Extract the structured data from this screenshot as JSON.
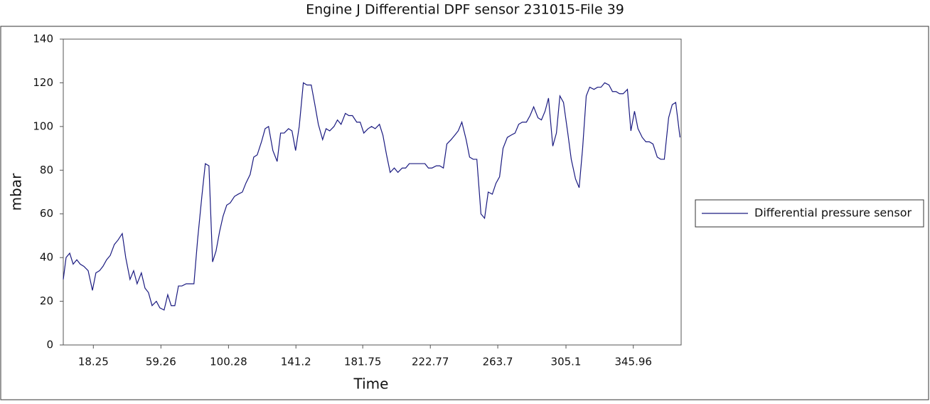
{
  "chart_data": {
    "type": "line",
    "title": "Engine J Differential DPF sensor 231015-File 39",
    "x_label": "Time",
    "y_label": "mbar",
    "xlim": [
      0,
      375
    ],
    "ylim": [
      0,
      140
    ],
    "xticks": [
      18.25,
      59.26,
      100.28,
      141.2,
      181.75,
      222.77,
      263.7,
      305.1,
      345.96
    ],
    "yticks": [
      0,
      20,
      40,
      60,
      80,
      100,
      120,
      140
    ],
    "grid": false,
    "legend": "right",
    "x": [
      0,
      1.7,
      3.9,
      6.0,
      8.2,
      10.3,
      12.5,
      15.1,
      17.7,
      19.8,
      22.0,
      24.1,
      26.3,
      28.5,
      31.0,
      33.2,
      35.8,
      37.9,
      40.5,
      42.7,
      44.8,
      47.4,
      49.6,
      51.7,
      53.9,
      56.5,
      58.6,
      61.2,
      63.4,
      65.5,
      67.7,
      69.9,
      72.0,
      74.6,
      76.8,
      79.3,
      81.5,
      84.1,
      86.2,
      88.4,
      90.6,
      92.7,
      94.9,
      97.0,
      99.2,
      101.3,
      103.9,
      106.1,
      108.7,
      110.8,
      113.4,
      115.6,
      117.7,
      120.3,
      122.5,
      124.6,
      127.2,
      129.8,
      131.9,
      134.1,
      136.7,
      138.8,
      141.0,
      143.2,
      145.7,
      147.9,
      150.5,
      152.7,
      154.8,
      157.4,
      159.5,
      161.7,
      164.3,
      166.4,
      168.6,
      171.2,
      173.3,
      175.5,
      178.1,
      180.2,
      182.4,
      185.0,
      187.1,
      189.3,
      191.9,
      194.0,
      196.2,
      198.4,
      200.9,
      203.1,
      205.7,
      207.8,
      210.0,
      212.6,
      214.7,
      216.9,
      219.5,
      221.6,
      223.8,
      226.4,
      228.5,
      230.7,
      232.8,
      235.4,
      237.6,
      239.7,
      241.9,
      244.5,
      246.6,
      248.8,
      251.0,
      253.5,
      255.7,
      257.9,
      260.4,
      262.6,
      264.8,
      266.9,
      269.5,
      271.7,
      274.2,
      276.4,
      278.6,
      281.1,
      283.3,
      285.5,
      288.1,
      290.2,
      292.4,
      294.5,
      297.1,
      299.3,
      301.4,
      303.6,
      306.2,
      308.3,
      310.9,
      313.1,
      315.2,
      317.4,
      319.5,
      322.1,
      324.3,
      326.4,
      328.6,
      331.2,
      333.3,
      335.5,
      337.6,
      339.8,
      342.4,
      344.5,
      346.7,
      348.8,
      351.4,
      353.6,
      355.7,
      357.9,
      360.5,
      362.6,
      364.8,
      367.4,
      369.6,
      371.7,
      374.3
    ],
    "series": [
      {
        "name": "Differential pressure sensor",
        "color": "#1a1a80",
        "values": [
          30,
          40,
          42,
          37,
          39,
          37,
          36,
          34,
          25,
          33,
          34,
          36,
          39,
          41,
          46,
          48,
          51,
          40,
          30,
          34,
          28,
          33,
          26,
          24,
          18,
          20,
          17,
          16,
          23,
          18,
          18,
          27,
          27,
          28,
          28,
          28,
          48,
          68,
          83,
          82,
          38,
          43,
          52,
          59,
          64,
          65,
          68,
          69,
          70,
          74,
          78,
          86,
          87,
          93,
          99,
          100,
          89,
          84,
          97,
          97,
          99,
          98,
          89,
          100,
          120,
          119,
          119,
          110,
          101,
          94,
          99,
          98,
          100,
          103,
          101,
          106,
          105,
          105,
          102,
          102,
          97,
          99,
          100,
          99,
          101,
          96,
          87,
          79,
          81,
          79,
          81,
          81,
          83,
          83,
          83,
          83,
          83,
          81,
          81,
          82,
          82,
          81,
          92,
          94,
          96,
          98,
          102,
          94,
          86,
          85,
          85,
          60,
          58,
          70,
          69,
          74,
          77,
          90,
          95,
          96,
          97,
          101,
          102,
          102,
          105,
          109,
          104,
          103,
          107,
          113,
          91,
          97,
          114,
          111,
          97,
          85,
          76,
          72,
          90,
          114,
          118,
          117,
          118,
          118,
          120,
          119,
          116,
          116,
          115,
          115,
          117,
          98,
          107,
          99,
          95,
          93,
          93,
          92,
          86,
          85,
          85,
          104,
          110,
          111,
          95
        ]
      }
    ]
  }
}
